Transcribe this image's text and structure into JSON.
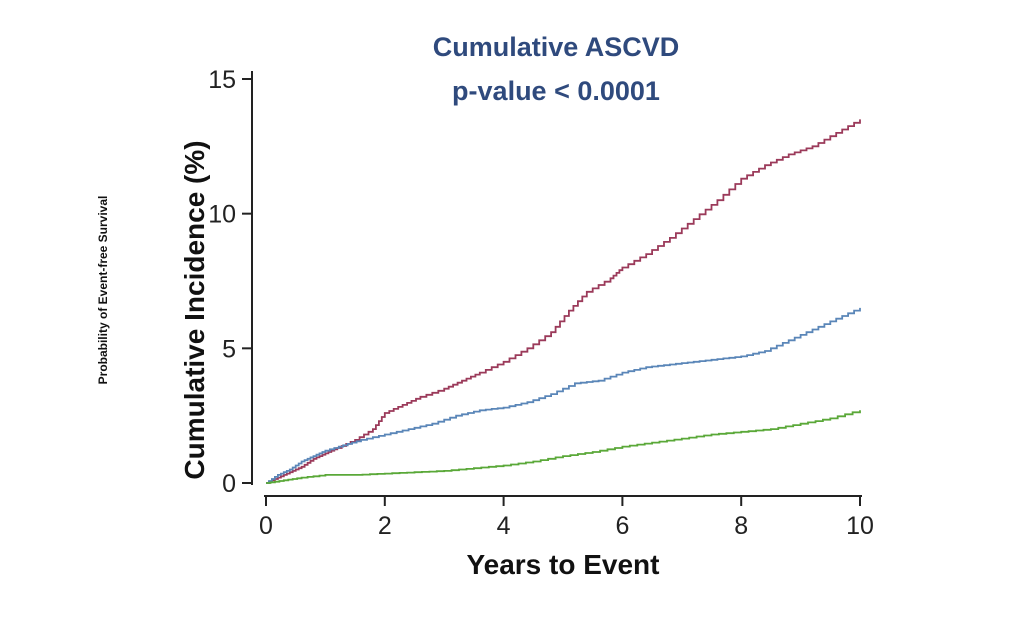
{
  "chart_data": {
    "type": "line",
    "title": "Cumulative ASCVD",
    "subtitle": "p-value < 0.0001",
    "xlabel": "Years to Event",
    "ylabel": "Cumulative Incidence (%)",
    "side_label": "Probability of Event-free Survival",
    "xlim": [
      0,
      10
    ],
    "ylim": [
      0,
      15
    ],
    "xticks": [
      0,
      2,
      4,
      6,
      8,
      10
    ],
    "yticks": [
      0,
      5,
      10,
      15
    ],
    "grid": false,
    "legend": null,
    "step": true,
    "series": [
      {
        "name": "red-series",
        "color": "#9b3a5a",
        "x": [
          0,
          0.2,
          0.4,
          0.6,
          0.8,
          1.0,
          1.2,
          1.5,
          1.8,
          2.0,
          2.3,
          2.6,
          3.0,
          3.3,
          3.6,
          4.0,
          4.4,
          4.8,
          5.1,
          5.4,
          5.8,
          6.0,
          6.4,
          6.8,
          7.2,
          7.6,
          8.0,
          8.4,
          8.8,
          9.2,
          9.6,
          10.0
        ],
        "y": [
          0,
          0.2,
          0.4,
          0.6,
          0.9,
          1.1,
          1.3,
          1.6,
          2.0,
          2.6,
          2.9,
          3.2,
          3.5,
          3.8,
          4.1,
          4.5,
          5.0,
          5.6,
          6.4,
          7.1,
          7.6,
          8.0,
          8.5,
          9.1,
          9.8,
          10.5,
          11.3,
          11.8,
          12.2,
          12.5,
          13.0,
          13.5
        ]
      },
      {
        "name": "blue-series",
        "color": "#5a86b8",
        "x": [
          0,
          0.2,
          0.4,
          0.6,
          0.8,
          1.0,
          1.3,
          1.6,
          2.0,
          2.4,
          2.8,
          3.2,
          3.6,
          4.0,
          4.4,
          4.8,
          5.2,
          5.6,
          6.0,
          6.4,
          6.8,
          7.2,
          7.6,
          8.0,
          8.4,
          8.8,
          9.2,
          9.6,
          10.0
        ],
        "y": [
          0,
          0.3,
          0.5,
          0.8,
          1.0,
          1.2,
          1.4,
          1.6,
          1.8,
          2.0,
          2.2,
          2.5,
          2.7,
          2.8,
          3.0,
          3.3,
          3.7,
          3.8,
          4.1,
          4.3,
          4.4,
          4.5,
          4.6,
          4.7,
          4.9,
          5.3,
          5.7,
          6.1,
          6.5
        ]
      },
      {
        "name": "green-series",
        "color": "#5aa838",
        "x": [
          0,
          0.3,
          0.6,
          1.0,
          1.5,
          2.0,
          2.5,
          3.0,
          3.5,
          4.0,
          4.5,
          5.0,
          5.5,
          6.0,
          6.5,
          7.0,
          7.5,
          8.0,
          8.5,
          9.0,
          9.5,
          10.0
        ],
        "y": [
          0,
          0.1,
          0.2,
          0.3,
          0.3,
          0.35,
          0.4,
          0.45,
          0.55,
          0.65,
          0.8,
          1.0,
          1.15,
          1.35,
          1.5,
          1.65,
          1.8,
          1.9,
          2.0,
          2.2,
          2.4,
          2.7
        ]
      }
    ]
  }
}
